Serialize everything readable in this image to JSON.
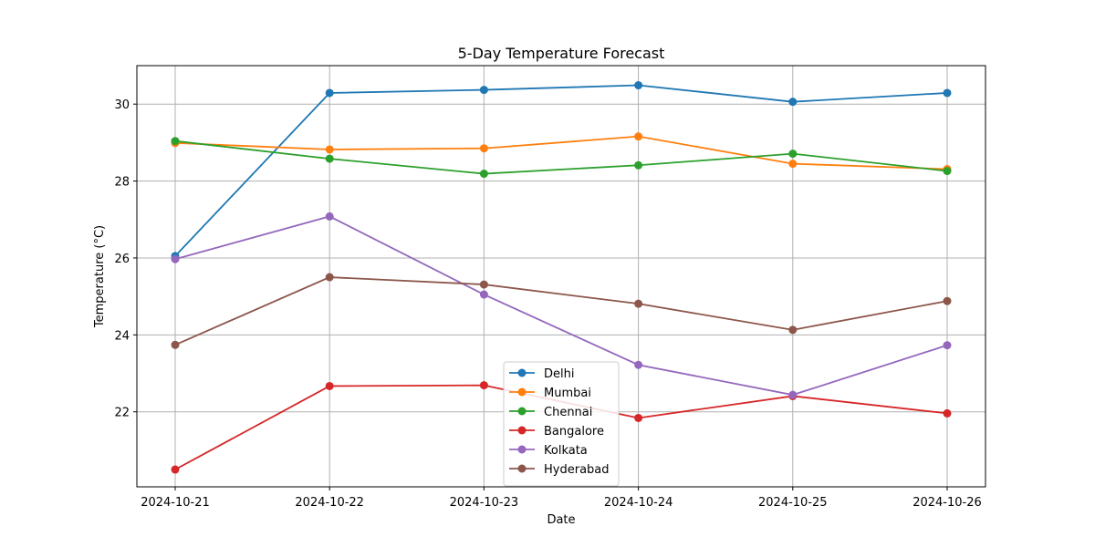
{
  "chart_data": {
    "type": "line",
    "title": "5-Day Temperature Forecast",
    "xlabel": "Date",
    "ylabel": "Temperature (°C)",
    "categories": [
      "2024-10-21",
      "2024-10-22",
      "2024-10-23",
      "2024-10-24",
      "2024-10-25",
      "2024-10-26"
    ],
    "ylim": [
      20.05,
      31.0
    ],
    "yticks": [
      22,
      24,
      26,
      28,
      30
    ],
    "grid": true,
    "legend_position": "bottom-center",
    "series": [
      {
        "name": "Delhi",
        "color": "#1f77b4",
        "values": [
          26.05,
          30.29,
          30.37,
          30.49,
          30.06,
          30.29
        ]
      },
      {
        "name": "Mumbai",
        "color": "#ff7f0e",
        "values": [
          28.99,
          28.82,
          28.85,
          29.16,
          28.45,
          28.31
        ]
      },
      {
        "name": "Chennai",
        "color": "#2ca02c",
        "values": [
          29.04,
          28.58,
          28.19,
          28.41,
          28.71,
          28.26
        ]
      },
      {
        "name": "Bangalore",
        "color": "#d62728",
        "values": [
          20.5,
          22.67,
          22.69,
          21.84,
          22.41,
          21.96
        ]
      },
      {
        "name": "Kolkata",
        "color": "#9467bd",
        "values": [
          25.97,
          27.08,
          25.05,
          23.22,
          22.44,
          23.73
        ]
      },
      {
        "name": "Hyderabad",
        "color": "#8c564b",
        "values": [
          23.74,
          25.5,
          25.31,
          24.81,
          24.13,
          24.88
        ]
      }
    ]
  }
}
